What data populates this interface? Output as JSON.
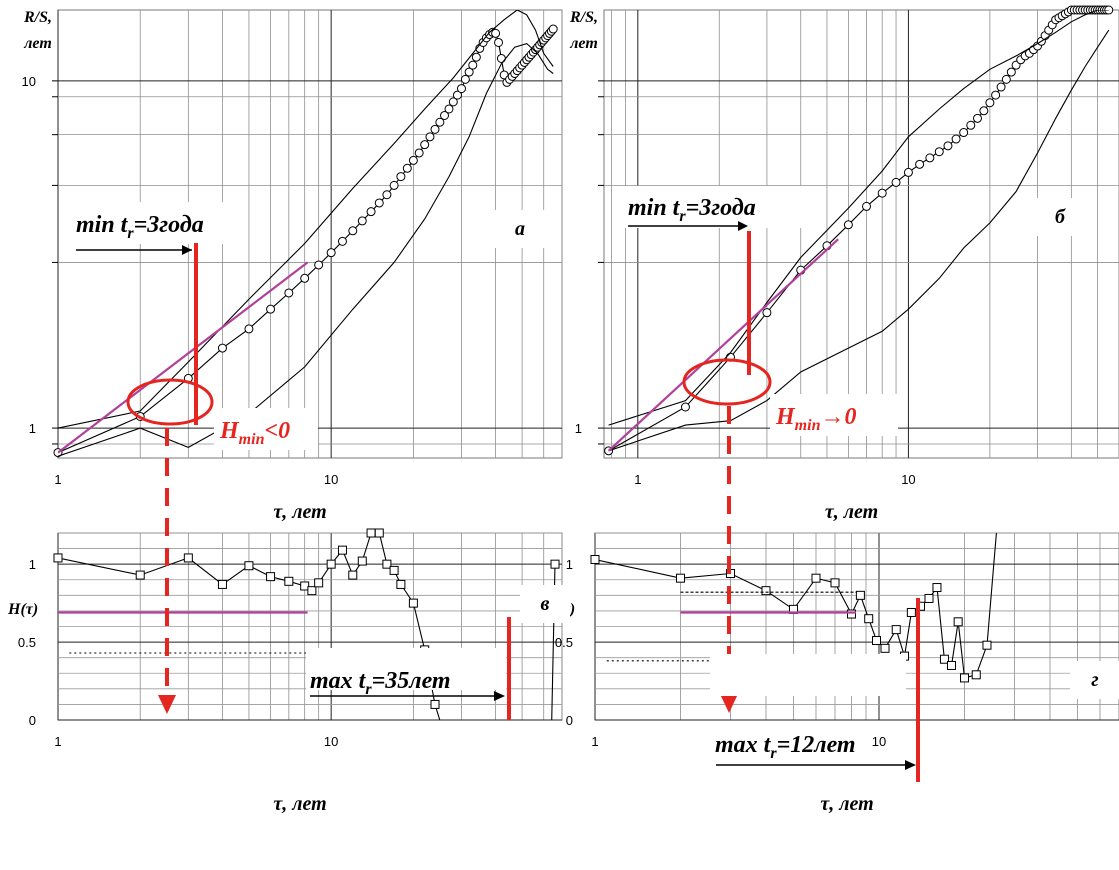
{
  "chart_data": [
    {
      "id": "a",
      "type": "line",
      "panel_letter": "а",
      "ylabel": "R/S, лет",
      "xlabel": "τ, лет",
      "x_scale": "log",
      "y_scale": "log",
      "xlim": [
        1,
        70
      ],
      "ylim": [
        0.82,
        16
      ],
      "x_ticks": [
        1,
        10
      ],
      "y_ticks": [
        1,
        10
      ],
      "annotations": [
        "min t_r=3года",
        "H_min<0"
      ],
      "series": [
        {
          "marker": "circle",
          "color": "#000000",
          "x": [
            1,
            2,
            3,
            4,
            5,
            6,
            7,
            8,
            9,
            10,
            11,
            12,
            13,
            14,
            15,
            16,
            17,
            18,
            19,
            20,
            21,
            22,
            23,
            24,
            25,
            26,
            27,
            28,
            29,
            30,
            31,
            32,
            33,
            34,
            35,
            36,
            37,
            38,
            39,
            40,
            41,
            42,
            43,
            44,
            45,
            46,
            47,
            48,
            49,
            50,
            51,
            52,
            53,
            54,
            55,
            56,
            57,
            58,
            59,
            60,
            61,
            62,
            63,
            64,
            65
          ],
          "y": [
            0.85,
            1.08,
            1.39,
            1.7,
            1.93,
            2.2,
            2.45,
            2.7,
            2.95,
            3.2,
            3.45,
            3.7,
            3.95,
            4.2,
            4.45,
            4.7,
            5.0,
            5.3,
            5.6,
            5.9,
            6.2,
            6.55,
            6.9,
            7.25,
            7.6,
            7.95,
            8.3,
            8.7,
            9.1,
            9.5,
            10.1,
            10.6,
            11.1,
            11.7,
            12.4,
            12.9,
            13.3,
            13.6,
            13.8,
            13.7,
            12.9,
            11.6,
            10.4,
            9.9,
            10.1,
            10.3,
            10.5,
            10.7,
            10.9,
            11.1,
            11.3,
            11.5,
            11.7,
            11.9,
            12.1,
            12.3,
            12.5,
            12.7,
            12.9,
            13.1,
            13.3,
            13.5,
            13.7,
            13.9,
            14.1
          ]
        },
        {
          "marker": "none",
          "color": "#000000",
          "name": "upper",
          "x": [
            1,
            2,
            3,
            5,
            8,
            12,
            17,
            22,
            28,
            33,
            38,
            43,
            48,
            52,
            56,
            60,
            65
          ],
          "y": [
            1.0,
            1.12,
            1.55,
            2.35,
            3.4,
            4.9,
            6.6,
            8.3,
            10.2,
            12.0,
            13.8,
            15.0,
            16.0,
            15.5,
            14.0,
            12.0,
            11.0
          ]
        },
        {
          "marker": "none",
          "color": "#000000",
          "name": "lower",
          "x": [
            1,
            2,
            3,
            5,
            8,
            12,
            17,
            22,
            27,
            32,
            37,
            42,
            47,
            52,
            57,
            62,
            65
          ],
          "y": [
            0.83,
            1.0,
            0.88,
            1.1,
            1.5,
            2.2,
            3.0,
            4.0,
            5.3,
            6.9,
            9.2,
            11.2,
            12.5,
            12.8,
            12.0,
            10.8,
            10.5
          ]
        },
        {
          "marker": "none",
          "color": "#b0409a",
          "name": "fit",
          "x": [
            1,
            8.2
          ],
          "y": [
            0.85,
            3.0
          ]
        }
      ]
    },
    {
      "id": "b",
      "type": "line",
      "panel_letter": "б",
      "ylabel": "R/S, лет",
      "xlabel": "τ, лет",
      "x_scale": "log",
      "y_scale": "log",
      "xlim": [
        0.75,
        60
      ],
      "ylim": [
        0.82,
        16
      ],
      "x_ticks": [
        1,
        10
      ],
      "y_ticks": [
        1
      ],
      "annotations": [
        "min t_r=3года",
        "H_min→0"
      ],
      "series": [
        {
          "marker": "circle",
          "color": "#000000",
          "x": [
            0.78,
            1.5,
            2.2,
            3,
            4,
            5,
            6,
            7,
            8,
            9,
            10,
            11,
            12,
            13,
            14,
            15,
            16,
            17,
            18,
            19,
            20,
            21,
            22,
            23,
            24,
            25,
            26,
            27,
            28,
            29,
            30,
            31,
            32,
            33,
            34,
            35,
            36,
            37,
            38,
            39,
            40,
            41,
            42,
            43,
            44,
            45,
            46,
            47,
            48,
            49,
            50,
            51,
            52,
            53,
            54,
            55
          ],
          "y": [
            0.86,
            1.15,
            1.6,
            2.15,
            2.85,
            3.35,
            3.85,
            4.35,
            4.75,
            5.1,
            5.45,
            5.75,
            6.0,
            6.25,
            6.5,
            6.8,
            7.1,
            7.45,
            7.8,
            8.2,
            8.65,
            9.1,
            9.6,
            10.1,
            10.6,
            11.1,
            11.5,
            11.8,
            12.0,
            12.3,
            12.6,
            13.0,
            13.5,
            14.0,
            14.5,
            15.0,
            15.2,
            15.4,
            15.6,
            15.8,
            16.0,
            16.0,
            16.0,
            16.0,
            16.0,
            16.0,
            16.0,
            16.0,
            16.0,
            16.0,
            16.0,
            16.0,
            16.0,
            16.0,
            16.0,
            16.0
          ]
        },
        {
          "marker": "none",
          "color": "#000000",
          "name": "upper",
          "x": [
            0.78,
            1.5,
            2.2,
            3,
            4,
            6,
            8,
            10,
            13,
            16,
            20,
            25,
            30,
            35,
            40,
            45,
            50,
            55
          ],
          "y": [
            1.02,
            1.2,
            1.65,
            2.3,
            3.1,
            4.3,
            5.5,
            6.9,
            8.3,
            9.5,
            10.8,
            11.8,
            12.8,
            13.8,
            14.8,
            15.5,
            16.0,
            16.0
          ]
        },
        {
          "marker": "none",
          "color": "#000000",
          "name": "lower",
          "x": [
            0.78,
            1.5,
            2.2,
            3,
            4,
            6,
            8,
            10,
            13,
            16,
            20,
            25,
            30,
            35,
            40,
            45,
            50,
            55
          ],
          "y": [
            0.86,
            1.02,
            1.05,
            1.2,
            1.45,
            1.7,
            1.9,
            2.2,
            2.7,
            3.3,
            3.9,
            4.8,
            6.2,
            7.8,
            9.4,
            11.0,
            12.5,
            14.0
          ]
        },
        {
          "marker": "none",
          "color": "#b0409a",
          "name": "fit",
          "x": [
            0.78,
            5.5
          ],
          "y": [
            0.86,
            3.5
          ]
        }
      ]
    },
    {
      "id": "v",
      "type": "line",
      "panel_letter": "в",
      "ylabel": "H(τ)",
      "xlabel": "τ, лет",
      "x_scale": "log",
      "y_scale": "linear",
      "xlim": [
        1,
        70
      ],
      "ylim": [
        0,
        1.2
      ],
      "x_ticks": [
        1,
        10
      ],
      "y_ticks": [
        0,
        0.5,
        1
      ],
      "annotations": [
        "max t_r=35лет"
      ],
      "series": [
        {
          "marker": "square",
          "color": "#000000",
          "x": [
            1,
            2,
            3,
            4,
            5,
            6,
            7,
            8,
            8.5,
            9,
            10,
            11,
            12,
            13,
            14,
            15,
            16,
            17,
            18,
            20,
            22,
            24,
            26,
            28,
            30,
            32,
            34,
            36,
            38,
            40,
            42,
            44,
            46,
            48,
            50,
            52,
            54,
            56,
            58,
            60,
            62,
            64,
            66
          ],
          "y": [
            1.04,
            0.93,
            1.04,
            0.87,
            0.99,
            0.92,
            0.89,
            0.86,
            0.83,
            0.88,
            1.0,
            1.09,
            0.93,
            1.02,
            1.2,
            1.2,
            1.0,
            0.96,
            0.87,
            0.75,
            0.45,
            0.1,
            -0.1,
            -0.1,
            -0.1,
            -0.1,
            -0.1,
            -0.1,
            -0.1,
            -0.1,
            -0.1,
            -0.1,
            -0.1,
            -0.1,
            -0.1,
            -0.1,
            -0.1,
            -0.1,
            -0.1,
            -0.1,
            -0.1,
            -0.1,
            1.0
          ]
        },
        {
          "marker": "none",
          "color": "#b0409a",
          "name": "fit",
          "x": [
            1,
            8.2
          ],
          "y": [
            0.69,
            0.69
          ]
        },
        {
          "marker": "none",
          "color": "#000000",
          "name": "dotted",
          "dash": "2,3",
          "x": [
            1.1,
            8.2
          ],
          "y": [
            0.43,
            0.43
          ]
        }
      ]
    },
    {
      "id": "g",
      "type": "line",
      "panel_letter": "г",
      "ylabel": "H(τ)",
      "xlabel": "τ, лет",
      "x_scale": "log",
      "y_scale": "linear",
      "xlim": [
        1,
        70
      ],
      "ylim": [
        0,
        1.2
      ],
      "x_ticks": [
        1,
        10
      ],
      "y_ticks": [
        0,
        0.5,
        1
      ],
      "annotations": [
        "max t_r=12лет"
      ],
      "series": [
        {
          "marker": "square",
          "color": "#000000",
          "x": [
            1,
            2,
            3,
            4,
            5,
            6,
            7,
            8,
            8.6,
            9.2,
            9.8,
            10.5,
            11.5,
            12.3,
            13,
            14,
            15,
            16,
            17,
            18,
            19,
            20,
            22,
            24,
            26,
            28,
            30,
            32,
            35,
            38,
            40,
            42,
            44,
            46,
            48,
            50
          ],
          "y": [
            1.03,
            0.91,
            0.94,
            0.83,
            0.71,
            0.91,
            0.88,
            0.68,
            0.8,
            0.65,
            0.51,
            0.46,
            0.58,
            0.41,
            0.69,
            0.73,
            0.78,
            0.85,
            0.39,
            0.35,
            0.63,
            0.27,
            0.29,
            0.48,
            1.23,
            1.23,
            1.23,
            1.23,
            1.23,
            1.23,
            1.23,
            1.23,
            1.23,
            1.23,
            1.23,
            1.23
          ]
        },
        {
          "marker": "none",
          "color": "#b0409a",
          "name": "fit",
          "x": [
            2,
            8.3
          ],
          "y": [
            0.69,
            0.69
          ]
        },
        {
          "marker": "none",
          "color": "#000000",
          "name": "dashed",
          "dash": "3,2",
          "x": [
            2,
            8.3
          ],
          "y": [
            0.82,
            0.82
          ]
        },
        {
          "marker": "none",
          "color": "#000000",
          "name": "dotted",
          "dash": "2,3",
          "x": [
            1.1,
            8.3
          ],
          "y": [
            0.38,
            0.38
          ]
        }
      ]
    }
  ]
}
